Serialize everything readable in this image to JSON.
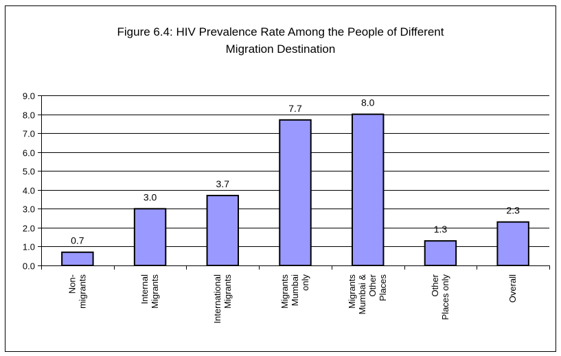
{
  "chart_data": {
    "type": "bar",
    "title_lines": [
      "Figure 6.4: HIV Prevalence Rate Among the People of Different",
      "Migration Destination"
    ],
    "categories": [
      [
        "Non-",
        "migrants"
      ],
      [
        "Internal",
        "Migrants"
      ],
      [
        "International",
        "Migrants"
      ],
      [
        "Migrants",
        "Mumbai",
        "only"
      ],
      [
        "Migrants",
        "Mumbai  &",
        "Other",
        "Places"
      ],
      [
        "Other",
        "Places only"
      ],
      [
        "Overall"
      ]
    ],
    "values": [
      0.7,
      3.0,
      3.7,
      7.7,
      8.0,
      1.3,
      2.3
    ],
    "data_labels": [
      "0.7",
      "3.0",
      "3.7",
      "7.7",
      "8.0",
      "1.3",
      "2.3"
    ],
    "y_ticks": [
      "0.0",
      "1.0",
      "2.0",
      "3.0",
      "4.0",
      "5.0",
      "6.0",
      "7.0",
      "8.0",
      "9.0"
    ],
    "ylim": [
      0,
      9
    ],
    "grid": true,
    "legend": "none",
    "bar_color": "#9999ff",
    "bar_edge_color": "#000000"
  }
}
